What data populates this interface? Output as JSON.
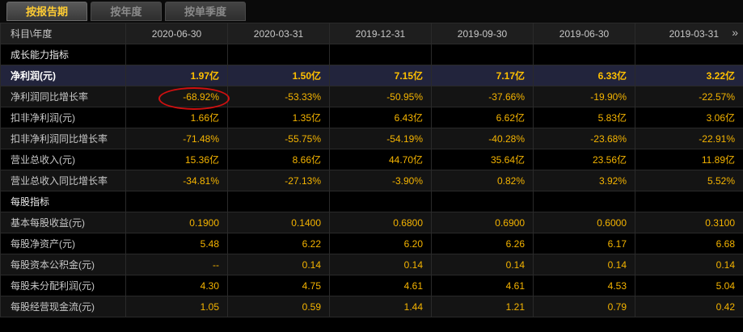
{
  "tabs": [
    "按报告期",
    "按年度",
    "按单季度"
  ],
  "header": {
    "first": "科目\\年度",
    "periods": [
      "2020-06-30",
      "2020-03-31",
      "2019-12-31",
      "2019-09-30",
      "2019-06-30",
      "2019-03-31"
    ],
    "scroll_icon": "chevron-double-right-icon",
    "scroll_glyph": "»"
  },
  "sections": [
    {
      "title": "成长能力指标",
      "rows": [
        {
          "label": "净利润(元)",
          "highlight": true,
          "values": [
            "1.97亿",
            "1.50亿",
            "7.15亿",
            "7.17亿",
            "6.33亿",
            "3.22亿"
          ]
        },
        {
          "label": "净利润同比增长率",
          "values": [
            "-68.92%",
            "-53.33%",
            "-50.95%",
            "-37.66%",
            "-19.90%",
            "-22.57%"
          ]
        },
        {
          "label": "扣非净利润(元)",
          "values": [
            "1.66亿",
            "1.35亿",
            "6.43亿",
            "6.62亿",
            "5.83亿",
            "3.06亿"
          ]
        },
        {
          "label": "扣非净利润同比增长率",
          "values": [
            "-71.48%",
            "-55.75%",
            "-54.19%",
            "-40.28%",
            "-23.68%",
            "-22.91%"
          ]
        },
        {
          "label": "营业总收入(元)",
          "values": [
            "15.36亿",
            "8.66亿",
            "44.70亿",
            "35.64亿",
            "23.56亿",
            "11.89亿"
          ]
        },
        {
          "label": "营业总收入同比增长率",
          "values": [
            "-34.81%",
            "-27.13%",
            "-3.90%",
            "0.82%",
            "3.92%",
            "5.52%"
          ]
        }
      ]
    },
    {
      "title": "每股指标",
      "rows": [
        {
          "label": "基本每股收益(元)",
          "values": [
            "0.1900",
            "0.1400",
            "0.6800",
            "0.6900",
            "0.6000",
            "0.3100"
          ]
        },
        {
          "label": "每股净资产(元)",
          "values": [
            "5.48",
            "6.22",
            "6.20",
            "6.26",
            "6.17",
            "6.68"
          ]
        },
        {
          "label": "每股资本公积金(元)",
          "values": [
            "--",
            "0.14",
            "0.14",
            "0.14",
            "0.14",
            "0.14"
          ]
        },
        {
          "label": "每股未分配利润(元)",
          "values": [
            "4.30",
            "4.75",
            "4.61",
            "4.61",
            "4.53",
            "5.04"
          ]
        },
        {
          "label": "每股经营现金流(元)",
          "values": [
            "1.05",
            "0.59",
            "1.44",
            "1.21",
            "0.79",
            "0.42"
          ]
        }
      ]
    }
  ],
  "annotation": {
    "type": "red-ellipse",
    "target": "净利润同比增长率 / 2020-06-30"
  },
  "colors": {
    "value": "#f5b400",
    "accent_tab": "#ffcc33",
    "highlight_row": "#22243c",
    "annotation": "#d01010"
  }
}
